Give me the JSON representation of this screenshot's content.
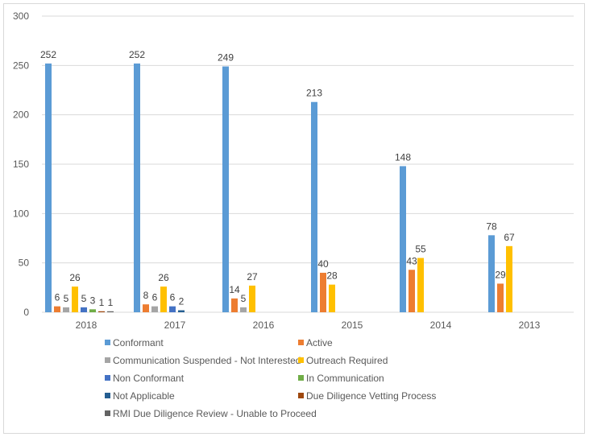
{
  "chart_data": {
    "type": "bar",
    "title": "",
    "xlabel": "",
    "ylabel": "",
    "ylim": [
      0,
      300
    ],
    "yticks": [
      0,
      50,
      100,
      150,
      200,
      250,
      300
    ],
    "categories": [
      "2018",
      "2017",
      "2016",
      "2015",
      "2014",
      "2013"
    ],
    "series": [
      {
        "name": "Conformant",
        "color": "#5b9bd5",
        "values": [
          252,
          252,
          249,
          213,
          148,
          78
        ]
      },
      {
        "name": "Active",
        "color": "#ed7d31",
        "values": [
          6,
          8,
          14,
          40,
          43,
          29
        ]
      },
      {
        "name": "Communication Suspended - Not Interested",
        "color": "#a5a5a5",
        "values": [
          5,
          6,
          5,
          null,
          null,
          null
        ]
      },
      {
        "name": "Outreach Required",
        "color": "#ffc000",
        "values": [
          26,
          26,
          27,
          28,
          55,
          67
        ]
      },
      {
        "name": "Non Conformant",
        "color": "#4472c4",
        "values": [
          5,
          6,
          null,
          null,
          null,
          null
        ]
      },
      {
        "name": "In Communication",
        "color": "#70ad47",
        "values": [
          3,
          null,
          null,
          null,
          null,
          null
        ]
      },
      {
        "name": "Not Applicable",
        "color": "#255e91",
        "values": [
          null,
          2,
          null,
          null,
          null,
          null
        ]
      },
      {
        "name": "Due Diligence Vetting Process",
        "color": "#9e480e",
        "values": [
          1,
          null,
          null,
          null,
          null,
          null
        ]
      },
      {
        "name": "RMI Due Diligence Review - Unable to Proceed",
        "color": "#636363",
        "values": [
          1,
          null,
          null,
          null,
          null,
          null
        ]
      }
    ],
    "legend_position": "bottom"
  }
}
